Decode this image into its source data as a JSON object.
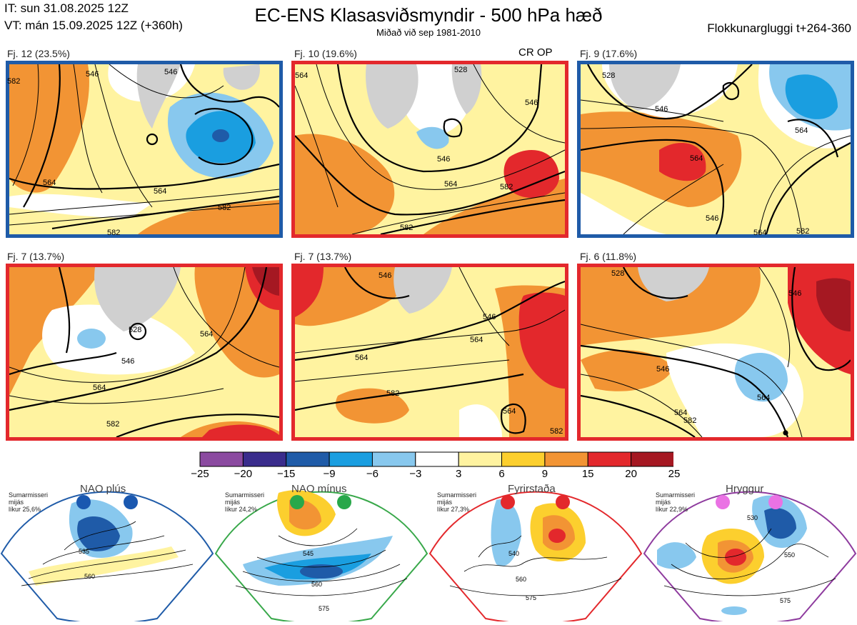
{
  "header": {
    "it": "IT: sun 31.08.2025 12Z",
    "vt": "VT: mán 15.09.2025 12Z  (+360h)",
    "title": "EC-ENS Klasasviðsmyndir - 500 hPa hæð",
    "subtitle": "Miðað við sep 1981-2010",
    "window": "Flokkunargluggi t+264-360"
  },
  "colors": {
    "blue_frame": "#1f5ba8",
    "red_frame": "#e3282c",
    "green_frame": "#38a84a",
    "purple_frame": "#8e3b9e"
  },
  "chart_data": [
    {
      "type": "map",
      "label": "Fj. 12 (23.5%)",
      "members": 12,
      "probability_pct": 23.5,
      "frame": "blue",
      "op": "",
      "contours": [
        "582",
        "546",
        "546",
        "564",
        "564",
        "582",
        "582"
      ]
    },
    {
      "type": "map",
      "label": "Fj. 10 (19.6%)",
      "members": 10,
      "probability_pct": 19.6,
      "frame": "red",
      "op": "CR OP",
      "contours": [
        "564",
        "546",
        "564",
        "582",
        "528",
        "546",
        "582"
      ]
    },
    {
      "type": "map",
      "label": "Fj. 9 (17.6%)",
      "members": 9,
      "probability_pct": 17.6,
      "frame": "blue",
      "op": "",
      "contours": [
        "528",
        "546",
        "564",
        "546",
        "564",
        "564",
        "582"
      ]
    },
    {
      "type": "map",
      "label": "Fj. 7 (13.7%)",
      "members": 7,
      "probability_pct": 13.7,
      "frame": "red",
      "op": "",
      "contours": [
        "528",
        "546",
        "564",
        "564",
        "582"
      ]
    },
    {
      "type": "map",
      "label": "Fj. 7 (13.7%)",
      "members": 7,
      "probability_pct": 13.7,
      "frame": "red",
      "op": "",
      "contours": [
        "546",
        "546",
        "564",
        "564",
        "582",
        "564",
        "582"
      ]
    },
    {
      "type": "map",
      "label": "Fj. 6 (11.8%)",
      "members": 6,
      "probability_pct": 11.8,
      "frame": "red",
      "op": "",
      "contours": [
        "528",
        "546",
        "546",
        "564",
        "564",
        "582"
      ]
    },
    {
      "type": "colorbar",
      "ticks": [
        "−25",
        "−20",
        "−15",
        "−9",
        "−6",
        "−3",
        "3",
        "6",
        "9",
        "15",
        "20",
        "25"
      ],
      "colors": [
        "#8b4aa0",
        "#3a2c8c",
        "#1f5ba8",
        "#1a9ee0",
        "#88c8ee",
        "#ffffff",
        "#fff3a0",
        "#fccf2e",
        "#f29434",
        "#e3282c",
        "#a51822"
      ]
    }
  ],
  "regimes": [
    {
      "name": "NAO plús",
      "season": "Sumarmisseri",
      "period": "mijás",
      "prob": "líkur 25,6%",
      "frame": "#1f5ba8",
      "dot": "#1a58b0",
      "contours": [
        "535",
        "560"
      ]
    },
    {
      "name": "NAO mínus",
      "season": "Sumarmisseri",
      "period": "mijás",
      "prob": "líkur 24,2%",
      "frame": "#38a84a",
      "dot": "#28a84a",
      "contours": [
        "545",
        "560",
        "575"
      ]
    },
    {
      "name": "Fyrirstaða",
      "season": "Sumarmisseri",
      "period": "mijás",
      "prob": "líkur 27,3%",
      "frame": "#e3282c",
      "dot": "#e3282c",
      "contours": [
        "540",
        "560",
        "575"
      ]
    },
    {
      "name": "Hryggur",
      "season": "Sumarmisseri",
      "period": "mijás",
      "prob": "líkur 22,9%",
      "frame": "#8e3b9e",
      "dot": "#ea72e4",
      "contours": [
        "530",
        "550",
        "575"
      ]
    }
  ]
}
